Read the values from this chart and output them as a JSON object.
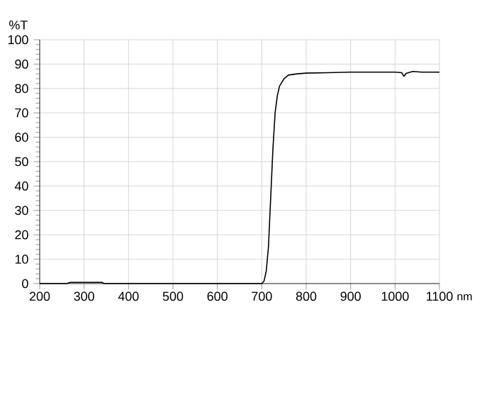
{
  "chart_data": {
    "type": "line",
    "xlabel": "nm",
    "ylabel": "%T",
    "x": [
      200,
      260,
      270,
      340,
      345,
      700,
      705,
      710,
      715,
      720,
      725,
      730,
      735,
      740,
      750,
      760,
      780,
      800,
      850,
      900,
      1000,
      1015,
      1020,
      1025,
      1040,
      1060,
      1100
    ],
    "series": [
      {
        "color": "#000000",
        "values": [
          0,
          0,
          0.5,
          0.5,
          0,
          0,
          1,
          5,
          15,
          35,
          55,
          70,
          77,
          81,
          84,
          85.5,
          86,
          86.3,
          86.5,
          86.7,
          86.7,
          86.5,
          85,
          86.2,
          87,
          86.7,
          86.7
        ]
      }
    ],
    "xlim": [
      200,
      1100
    ],
    "ylim": [
      0,
      100
    ],
    "xticks": [
      200,
      300,
      400,
      500,
      600,
      700,
      800,
      900,
      1000,
      1100
    ],
    "yticks": [
      0,
      10,
      20,
      30,
      40,
      50,
      60,
      70,
      80,
      90,
      100
    ],
    "grid": true,
    "marker": "none",
    "line_style": "solid"
  }
}
